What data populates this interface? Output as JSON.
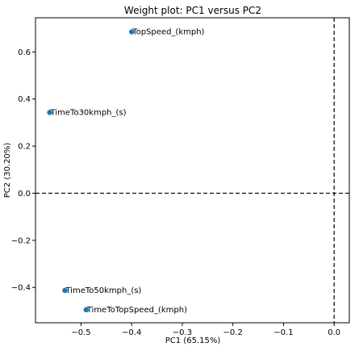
{
  "chart_data": {
    "type": "scatter",
    "title": "Weight plot: PC1 versus PC2",
    "xlabel": "PC1 (65.15%)",
    "ylabel": "PC2 (30.20%)",
    "xlim": [
      -0.59,
      0.03
    ],
    "ylim": [
      -0.55,
      0.745
    ],
    "xticks": [
      -0.5,
      -0.4,
      -0.3,
      -0.2,
      -0.1,
      0.0
    ],
    "xtick_labels": [
      "−0.5",
      "−0.4",
      "−0.3",
      "−0.2",
      "−0.1",
      "0.0"
    ],
    "yticks": [
      -0.4,
      -0.2,
      0.0,
      0.2,
      0.4,
      0.6
    ],
    "ytick_labels": [
      "−0.4",
      "−0.2",
      "0.0",
      "0.2",
      "0.4",
      "0.6"
    ],
    "grid": false,
    "reference_lines": [
      {
        "orientation": "horizontal",
        "value": 0.0,
        "style": "dashed"
      },
      {
        "orientation": "vertical",
        "value": 0.0,
        "style": "dashed"
      }
    ],
    "points": [
      {
        "label": "TopSpeed_(kmph)",
        "x": -0.4,
        "y": 0.685
      },
      {
        "label": "TimeTo30kmph_(s)",
        "x": -0.562,
        "y": 0.343
      },
      {
        "label": "TimeTo50kmph_(s)",
        "x": -0.532,
        "y": -0.413
      },
      {
        "label": "TimeToTopSpeed_(kmph)",
        "x": -0.49,
        "y": -0.495
      }
    ],
    "point_color": "#1f77b4"
  }
}
